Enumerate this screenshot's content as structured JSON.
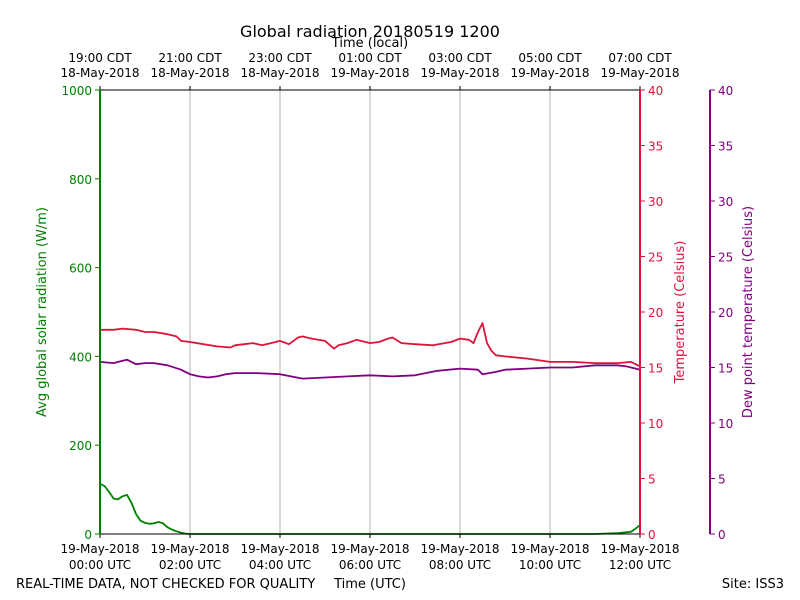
{
  "chart_data": {
    "type": "line",
    "title": "Global radiation 20180519 1200",
    "top_axis_label": "Time (local)",
    "xlabel": "Time (UTC)",
    "footer_left": "REAL-TIME DATA, NOT CHECKED FOR QUALITY",
    "footer_right": "Site: ISS3",
    "x_unit": "hours since 19-May-2018 00:00 UTC",
    "xlim": [
      0,
      12
    ],
    "x_ticks": [
      {
        "x": 0,
        "utc": [
          "19-May-2018",
          "00:00 UTC"
        ],
        "local": [
          "19:00 CDT",
          "18-May-2018"
        ]
      },
      {
        "x": 2,
        "utc": [
          "19-May-2018",
          "02:00 UTC"
        ],
        "local": [
          "21:00 CDT",
          "18-May-2018"
        ]
      },
      {
        "x": 4,
        "utc": [
          "19-May-2018",
          "04:00 UTC"
        ],
        "local": [
          "23:00 CDT",
          "18-May-2018"
        ]
      },
      {
        "x": 6,
        "utc": [
          "19-May-2018",
          "06:00 UTC"
        ],
        "local": [
          "01:00 CDT",
          "19-May-2018"
        ]
      },
      {
        "x": 8,
        "utc": [
          "19-May-2018",
          "08:00 UTC"
        ],
        "local": [
          "03:00 CDT",
          "19-May-2018"
        ]
      },
      {
        "x": 10,
        "utc": [
          "19-May-2018",
          "10:00 UTC"
        ],
        "local": [
          "05:00 CDT",
          "19-May-2018"
        ]
      },
      {
        "x": 12,
        "utc": [
          "19-May-2018",
          "12:00 UTC"
        ],
        "local": [
          "07:00 CDT",
          "19-May-2018"
        ]
      }
    ],
    "grid": "vertical",
    "axes": {
      "left": {
        "label": "Avg global solar radiation (W/m)",
        "ylim": [
          0,
          1000
        ],
        "ticks": [
          0,
          200,
          400,
          600,
          800,
          1000
        ],
        "color": "#008000"
      },
      "right1": {
        "label": "Temperature (Celsius)",
        "ylim": [
          0,
          40
        ],
        "ticks": [
          0,
          5,
          10,
          15,
          20,
          25,
          30,
          35,
          40
        ],
        "color": "#dc143c"
      },
      "right2": {
        "label": "Dew point temperature (Celsius)",
        "ylim": [
          0,
          40
        ],
        "ticks": [
          0,
          5,
          10,
          15,
          20,
          25,
          30,
          35,
          40
        ],
        "color": "#800080"
      }
    },
    "series": [
      {
        "axis": "left",
        "color": "#008000",
        "x": [
          0,
          0.1,
          0.2,
          0.3,
          0.4,
          0.5,
          0.6,
          0.7,
          0.8,
          0.9,
          1.0,
          1.1,
          1.2,
          1.3,
          1.4,
          1.5,
          1.6,
          1.7,
          1.8,
          1.9,
          2.0,
          2.2,
          2.5,
          3,
          4,
          5,
          6,
          7,
          8,
          9,
          10,
          11,
          11.5,
          11.8,
          11.9,
          12.0
        ],
        "y": [
          113,
          108,
          95,
          80,
          78,
          85,
          88,
          70,
          45,
          30,
          25,
          23,
          24,
          27,
          24,
          15,
          10,
          6,
          3,
          1,
          0,
          0,
          0,
          0,
          0,
          0,
          0,
          0,
          0,
          0,
          0,
          0,
          2,
          5,
          12,
          20
        ]
      },
      {
        "axis": "right1",
        "color": "#dc143c",
        "x": [
          0,
          0.3,
          0.5,
          0.8,
          1.0,
          1.2,
          1.5,
          1.7,
          1.8,
          2.0,
          2.3,
          2.6,
          2.9,
          3.0,
          3.2,
          3.4,
          3.6,
          3.8,
          4.0,
          4.2,
          4.4,
          4.5,
          4.7,
          5.0,
          5.2,
          5.3,
          5.5,
          5.7,
          6.0,
          6.2,
          6.4,
          6.5,
          6.7,
          7.0,
          7.4,
          7.8,
          8.0,
          8.2,
          8.3,
          8.4,
          8.5,
          8.6,
          8.7,
          8.8,
          9.0,
          9.5,
          10.0,
          10.5,
          11.0,
          11.5,
          11.8,
          12.0
        ],
        "y": [
          18.4,
          18.4,
          18.5,
          18.4,
          18.2,
          18.2,
          18.0,
          17.8,
          17.4,
          17.3,
          17.1,
          16.9,
          16.8,
          17.0,
          17.1,
          17.2,
          17.0,
          17.2,
          17.4,
          17.1,
          17.7,
          17.8,
          17.6,
          17.4,
          16.7,
          17.0,
          17.2,
          17.5,
          17.2,
          17.3,
          17.6,
          17.7,
          17.2,
          17.1,
          17.0,
          17.3,
          17.6,
          17.5,
          17.2,
          18.2,
          19.0,
          17.2,
          16.5,
          16.1,
          16.0,
          15.8,
          15.5,
          15.5,
          15.4,
          15.4,
          15.5,
          15.1
        ]
      },
      {
        "axis": "right2",
        "color": "#800080",
        "x": [
          0,
          0.3,
          0.5,
          0.6,
          0.8,
          1.0,
          1.2,
          1.5,
          1.8,
          2.0,
          2.2,
          2.4,
          2.6,
          2.8,
          3.0,
          3.5,
          4.0,
          4.5,
          5.0,
          5.5,
          6.0,
          6.5,
          7.0,
          7.5,
          8.0,
          8.4,
          8.5,
          8.8,
          9.0,
          9.5,
          10.0,
          10.5,
          11.0,
          11.5,
          11.7,
          12.0
        ],
        "y": [
          15.5,
          15.4,
          15.6,
          15.7,
          15.3,
          15.4,
          15.4,
          15.2,
          14.8,
          14.4,
          14.2,
          14.1,
          14.2,
          14.4,
          14.5,
          14.5,
          14.4,
          14.0,
          14.1,
          14.2,
          14.3,
          14.2,
          14.3,
          14.7,
          14.9,
          14.8,
          14.4,
          14.6,
          14.8,
          14.9,
          15.0,
          15.0,
          15.2,
          15.2,
          15.1,
          14.8
        ]
      }
    ]
  }
}
